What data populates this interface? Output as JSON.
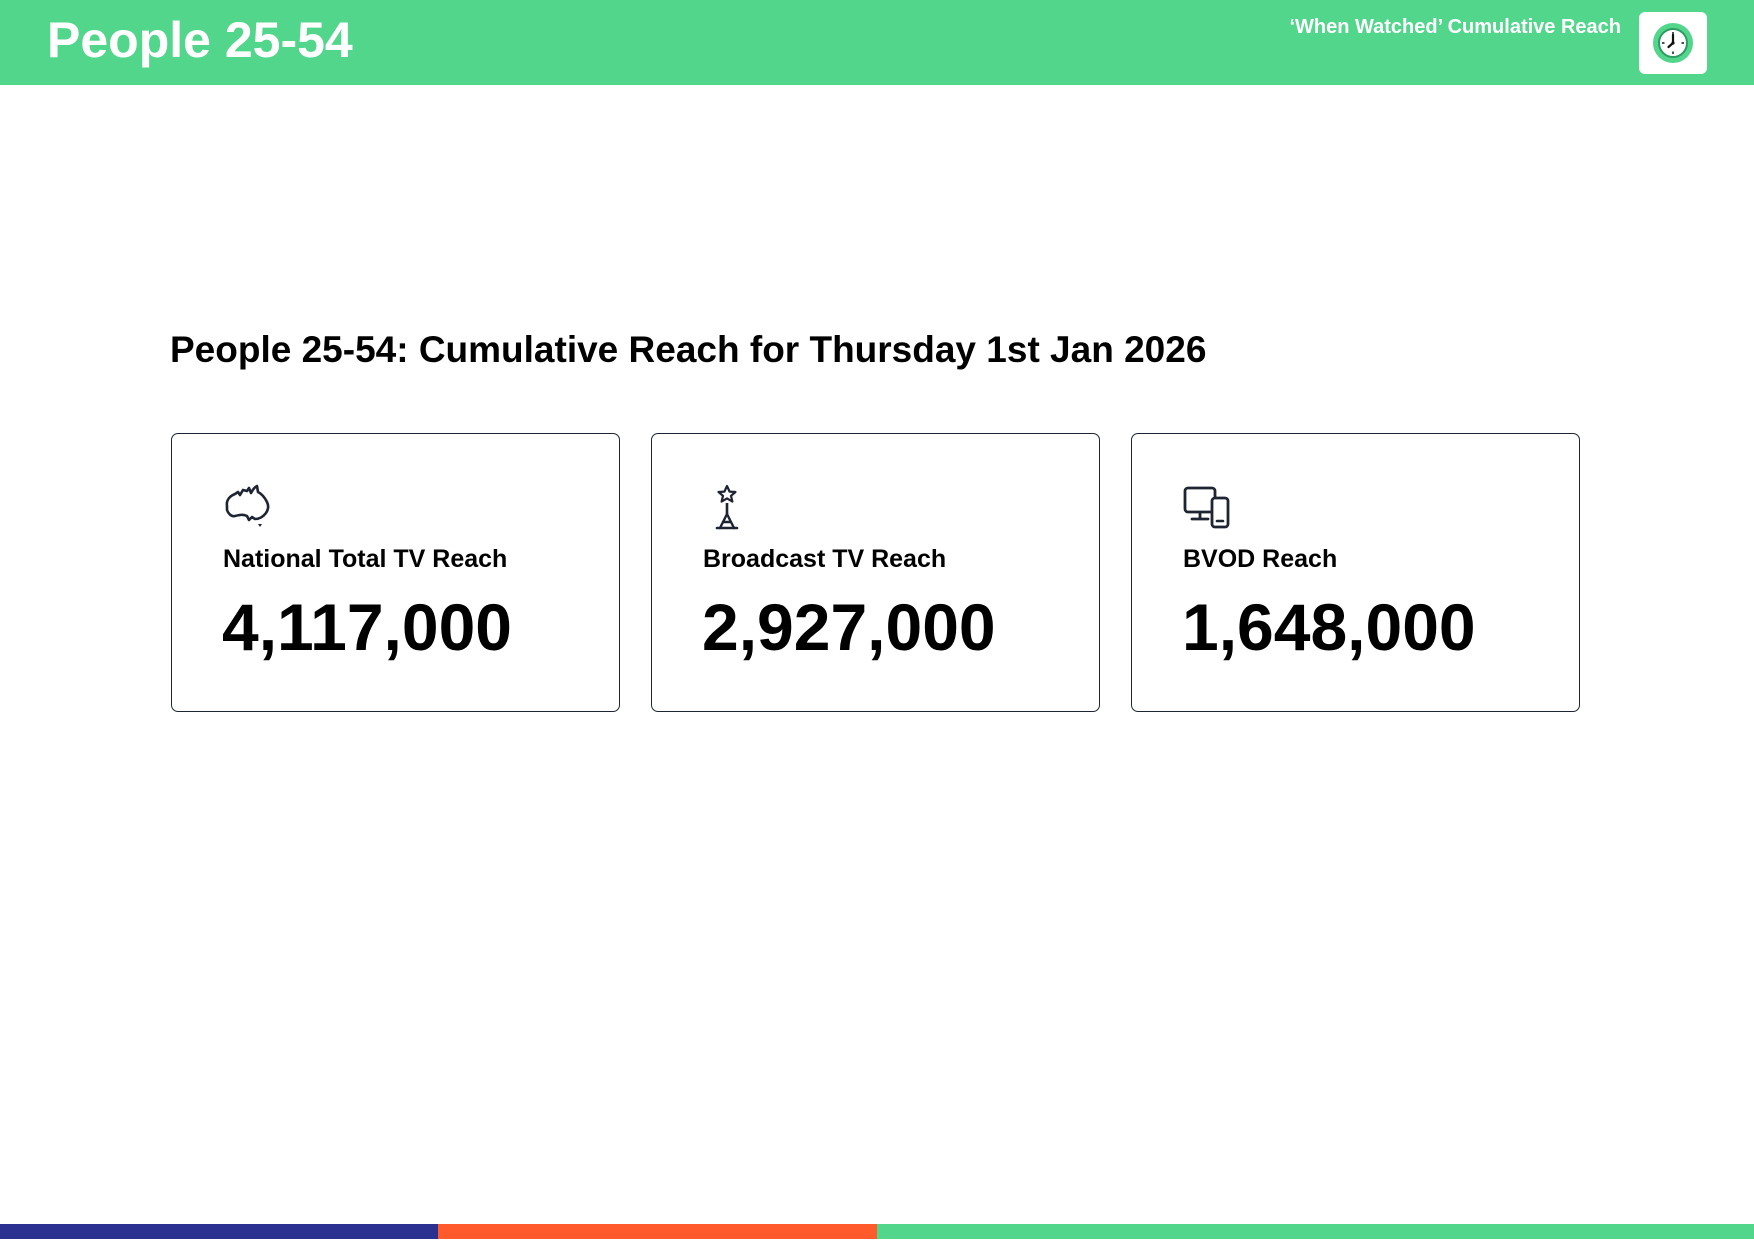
{
  "header": {
    "title": "People 25-54",
    "subtitle": "‘When Watched’ Cumulative Reach",
    "logo_icon": "clock-icon",
    "background_color": "#51d68b"
  },
  "section": {
    "title": "People 25-54: Cumulative Reach for Thursday 1st Jan 2026"
  },
  "cards": [
    {
      "icon": "australia-map-icon",
      "label": "National Total TV Reach",
      "value": "4,117,000"
    },
    {
      "icon": "broadcast-tower-icon",
      "label": "Broadcast TV Reach",
      "value": "2,927,000"
    },
    {
      "icon": "devices-icon",
      "label": "BVOD Reach",
      "value": "1,648,000"
    }
  ],
  "footer": {
    "colors": [
      "#2b3190",
      "#ff5a2c",
      "#51d68b"
    ]
  }
}
